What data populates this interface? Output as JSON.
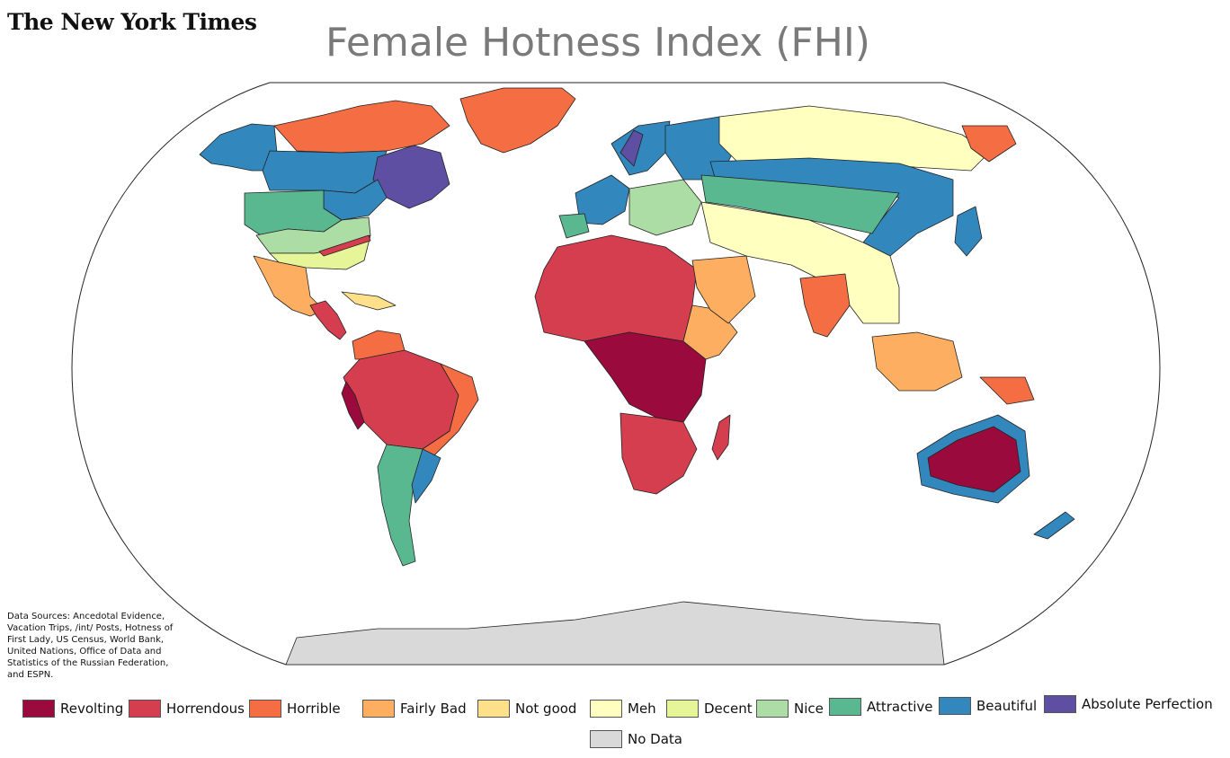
{
  "header": {
    "logo_text": "The New York Times",
    "title": "Female Hotness Index (FHI)"
  },
  "sources": {
    "text": "Data Sources: Ancedotal Evidence, Vacation Trips, /int/ Posts, Hotness of First Lady, US Census, World Bank, United Nations, Office of Data and Statistics of the Russian Federation, and ESPN."
  },
  "legend": {
    "items": [
      {
        "label": "Revolting",
        "color": "#9b0a3c"
      },
      {
        "label": "Horrendous",
        "color": "#d53e4f"
      },
      {
        "label": "Horrible",
        "color": "#f46d43"
      },
      {
        "label": "Fairly Bad",
        "color": "#fdae61"
      },
      {
        "label": "Not good",
        "color": "#fee08b"
      },
      {
        "label": "Meh",
        "color": "#ffffbf"
      },
      {
        "label": "Decent",
        "color": "#e6f598"
      },
      {
        "label": "Nice",
        "color": "#abdda4"
      },
      {
        "label": "Attractive",
        "color": "#5ab891"
      },
      {
        "label": "Beautiful",
        "color": "#3288bd"
      },
      {
        "label": "Absolute Perfection",
        "color": "#5e4fa2"
      },
      {
        "label": "No Data",
        "color": "#d9d9d9"
      }
    ]
  }
}
